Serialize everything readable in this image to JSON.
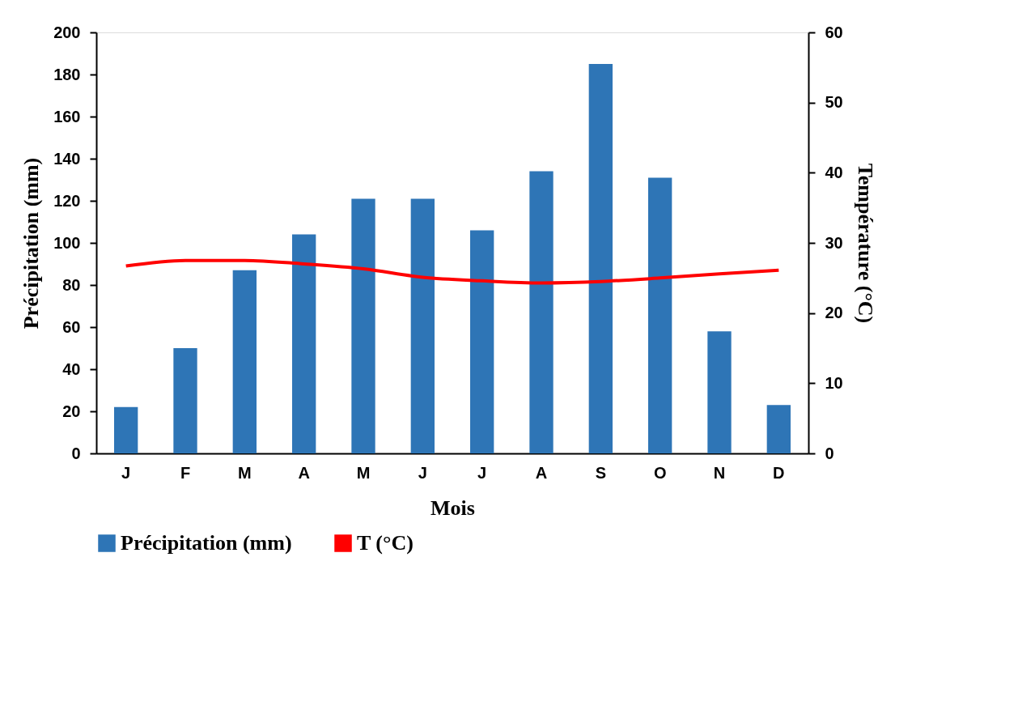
{
  "chart_data": {
    "type": "bar",
    "xlabel": "Mois",
    "ylabel": "Précipitation (mm)",
    "y2label": "Température  (°C)",
    "categories": [
      "J",
      "F",
      "M",
      "A",
      "M",
      "J",
      "J",
      "A",
      "S",
      "O",
      "N",
      "D"
    ],
    "series": [
      {
        "name": "Précipitation (mm)",
        "color": "#2e75b6",
        "values": [
          22,
          50,
          87,
          104,
          121,
          121,
          106,
          134,
          185,
          131,
          58,
          23
        ]
      },
      {
        "name": "T (°C)",
        "type": "line",
        "axis": "y2",
        "color": "#ff0000",
        "values": [
          26.7,
          27.5,
          27.5,
          27.0,
          26.3,
          25.1,
          24.6,
          24.3,
          24.5,
          25.0,
          25.6,
          26.1
        ]
      }
    ],
    "ylim": [
      0,
      200
    ],
    "yticks": [
      0,
      20,
      40,
      60,
      80,
      100,
      120,
      140,
      160,
      180,
      200
    ],
    "y2lim": [
      0,
      60
    ],
    "y2ticks": [
      0,
      10,
      20,
      30,
      40,
      50,
      60
    ],
    "grid": false,
    "legend": "bottom",
    "marker": "none",
    "line_style": "solid"
  }
}
